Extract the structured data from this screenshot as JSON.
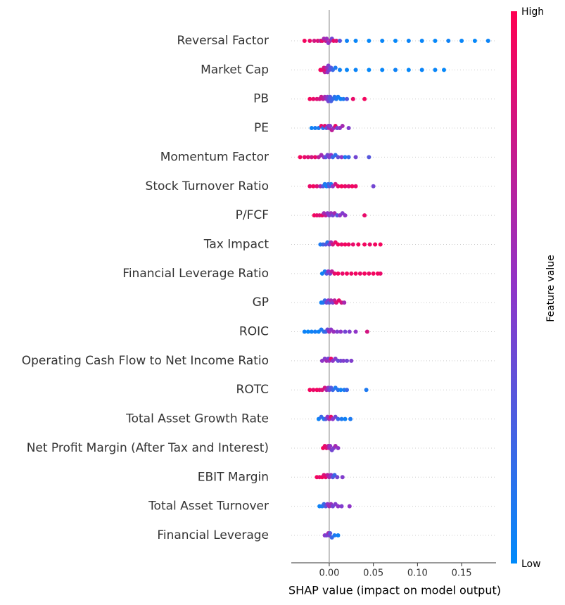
{
  "chart_data": {
    "type": "beeswarm",
    "x_label": "SHAP value (impact on model output)",
    "colorbar_label": "Feature value",
    "colorbar_high": "High",
    "colorbar_low": "Low",
    "colormap": [
      "#008bfb",
      "#8f34c8",
      "#ff0052"
    ],
    "xlim": [
      -0.043,
      0.189
    ],
    "xticks": [
      {
        "value": 0,
        "label": "0.00"
      },
      {
        "value": 0.05,
        "label": "0.05"
      },
      {
        "value": 0.1,
        "label": "0.10"
      },
      {
        "value": 0.15,
        "label": "0.15"
      }
    ],
    "series": [
      {
        "name": "Reversal Factor",
        "shap": [
          -0.028,
          -0.022,
          -0.017,
          -0.013,
          -0.01,
          -0.008,
          -0.006,
          -0.004,
          -0.003,
          -0.001,
          0.001,
          0.003,
          0.005,
          0.008,
          0.012,
          0.02,
          0.03,
          0.045,
          0.06,
          0.075,
          0.09,
          0.105,
          0.12,
          0.135,
          0.15,
          0.165,
          0.18
        ],
        "feature_value": [
          0.95,
          0.9,
          0.8,
          0.85,
          0.7,
          0.9,
          0.6,
          0.75,
          0.55,
          0.5,
          0.65,
          0.4,
          0.9,
          0.85,
          0.3,
          0.05,
          0.03,
          0.02,
          0.03,
          0.02,
          0.04,
          0.03,
          0.02,
          0.05,
          0.03,
          0.02,
          0.04
        ]
      },
      {
        "name": "Market Cap",
        "shap": [
          -0.01,
          -0.008,
          -0.006,
          -0.005,
          -0.004,
          -0.003,
          -0.002,
          -0.001,
          0,
          0.002,
          0.004,
          0.007,
          0.012,
          0.02,
          0.03,
          0.045,
          0.06,
          0.075,
          0.09,
          0.105,
          0.12,
          0.13
        ],
        "feature_value": [
          0.95,
          0.9,
          0.8,
          0.7,
          0.85,
          0.6,
          0.5,
          0.45,
          0.4,
          0.3,
          0.2,
          0.1,
          0.05,
          0.03,
          0.04,
          0.02,
          0.03,
          0.05,
          0.02,
          0.04,
          0.03,
          0.02
        ]
      },
      {
        "name": "PB",
        "shap": [
          -0.022,
          -0.018,
          -0.014,
          -0.011,
          -0.009,
          -0.007,
          -0.005,
          -0.003,
          -0.002,
          -0.001,
          0,
          0.001,
          0.002,
          0.004,
          0.006,
          0.008,
          0.01,
          0.013,
          0.016,
          0.02,
          0.027,
          0.04
        ],
        "feature_value": [
          0.95,
          0.9,
          0.85,
          0.8,
          0.75,
          0.7,
          0.6,
          0.5,
          0.45,
          0.4,
          0.35,
          0.3,
          0.25,
          0.2,
          0.15,
          0.1,
          0.08,
          0.05,
          0.1,
          0.3,
          0.9,
          0.95
        ]
      },
      {
        "name": "PE",
        "shap": [
          -0.02,
          -0.016,
          -0.012,
          -0.009,
          -0.007,
          -0.005,
          -0.003,
          -0.001,
          0,
          0.001,
          0.003,
          0.005,
          0.007,
          0.009,
          0.012,
          0.015,
          0.022
        ],
        "feature_value": [
          0.05,
          0.08,
          0.1,
          0.9,
          0.15,
          0.85,
          0.3,
          0.5,
          0.6,
          0.45,
          0.7,
          0.55,
          0.9,
          0.4,
          0.5,
          0.6,
          0.45
        ]
      },
      {
        "name": "Momentum Factor",
        "shap": [
          -0.033,
          -0.028,
          -0.024,
          -0.02,
          -0.016,
          -0.012,
          -0.009,
          -0.006,
          -0.004,
          -0.002,
          0,
          0.002,
          0.004,
          0.007,
          0.01,
          0.014,
          0.018,
          0.022,
          0.03,
          0.045
        ],
        "feature_value": [
          0.95,
          0.9,
          0.85,
          0.8,
          0.9,
          0.7,
          0.6,
          0.5,
          0.3,
          0.4,
          0.45,
          0.5,
          0.2,
          0.15,
          0.35,
          0.5,
          0.1,
          0.2,
          0.4,
          0.3
        ]
      },
      {
        "name": "Stock Turnover Ratio",
        "shap": [
          -0.022,
          -0.018,
          -0.014,
          -0.01,
          -0.007,
          -0.005,
          -0.003,
          -0.001,
          0,
          0.002,
          0.004,
          0.007,
          0.01,
          0.014,
          0.018,
          0.022,
          0.026,
          0.03,
          0.05
        ],
        "feature_value": [
          0.9,
          0.95,
          0.85,
          0.6,
          0.3,
          0.1,
          0.05,
          0.2,
          0.3,
          0.1,
          0.5,
          0.8,
          0.9,
          0.95,
          0.9,
          0.85,
          0.95,
          0.9,
          0.4
        ]
      },
      {
        "name": "P/FCF",
        "shap": [
          -0.017,
          -0.014,
          -0.011,
          -0.008,
          -0.006,
          -0.004,
          -0.002,
          0,
          0.002,
          0.004,
          0.006,
          0.009,
          0.012,
          0.015,
          0.018,
          0.04
        ],
        "feature_value": [
          0.95,
          0.9,
          0.85,
          0.9,
          0.6,
          0.7,
          0.5,
          0.45,
          0.55,
          0.4,
          0.6,
          0.3,
          0.5,
          0.45,
          0.5,
          0.9
        ]
      },
      {
        "name": "Tax Impact",
        "shap": [
          -0.01,
          -0.007,
          -0.004,
          -0.002,
          0,
          0.002,
          0.004,
          0.007,
          0.01,
          0.014,
          0.018,
          0.022,
          0.027,
          0.033,
          0.04,
          0.046,
          0.052,
          0.058
        ],
        "feature_value": [
          0.1,
          0.2,
          0.3,
          0.15,
          0.4,
          0.6,
          0.8,
          0.9,
          0.95,
          0.9,
          0.95,
          0.92,
          0.9,
          0.95,
          0.95,
          0.9,
          0.95,
          0.95
        ]
      },
      {
        "name": "Financial Leverage Ratio",
        "shap": [
          -0.008,
          -0.005,
          -0.003,
          -0.001,
          0.001,
          0.003,
          0.006,
          0.01,
          0.015,
          0.02,
          0.025,
          0.03,
          0.035,
          0.04,
          0.045,
          0.05,
          0.055,
          0.058
        ],
        "feature_value": [
          0.05,
          0.1,
          0.3,
          0.5,
          0.4,
          0.7,
          0.9,
          0.95,
          0.9,
          0.95,
          0.92,
          0.95,
          0.9,
          0.95,
          0.92,
          0.95,
          0.95,
          0.9
        ]
      },
      {
        "name": "GP",
        "shap": [
          -0.009,
          -0.007,
          -0.005,
          -0.003,
          -0.001,
          0,
          0.002,
          0.004,
          0.006,
          0.008,
          0.011,
          0.014,
          0.017
        ],
        "feature_value": [
          0.05,
          0.1,
          0.2,
          0.4,
          0.5,
          0.3,
          0.6,
          0.45,
          0.7,
          0.85,
          0.9,
          0.8,
          0.6
        ]
      },
      {
        "name": "ROIC",
        "shap": [
          -0.028,
          -0.024,
          -0.02,
          -0.016,
          -0.012,
          -0.009,
          -0.006,
          -0.004,
          -0.002,
          0,
          0.002,
          0.005,
          0.009,
          0.013,
          0.018,
          0.023,
          0.03,
          0.043
        ],
        "feature_value": [
          0.05,
          0.03,
          0.05,
          0.08,
          0.04,
          0.1,
          0.15,
          0.2,
          0.4,
          0.6,
          0.5,
          0.55,
          0.45,
          0.5,
          0.4,
          0.45,
          0.5,
          0.8
        ]
      },
      {
        "name": "Operating Cash Flow to Net Income Ratio",
        "shap": [
          -0.008,
          -0.005,
          -0.003,
          -0.001,
          0,
          0.002,
          0.004,
          0.007,
          0.01,
          0.013,
          0.016,
          0.02,
          0.025
        ],
        "feature_value": [
          0.5,
          0.45,
          0.6,
          0.4,
          0.55,
          0.9,
          0.5,
          0.45,
          0.35,
          0.4,
          0.45,
          0.4,
          0.45
        ]
      },
      {
        "name": "ROTC",
        "shap": [
          -0.022,
          -0.018,
          -0.014,
          -0.011,
          -0.008,
          -0.005,
          -0.003,
          -0.001,
          0,
          0.002,
          0.004,
          0.007,
          0.01,
          0.013,
          0.017,
          0.02,
          0.042
        ],
        "feature_value": [
          0.95,
          0.9,
          0.95,
          0.9,
          0.85,
          0.8,
          0.6,
          0.5,
          0.4,
          0.3,
          0.2,
          0.1,
          0.15,
          0.05,
          0.1,
          0.2,
          0.1
        ]
      },
      {
        "name": "Total Asset Growth Rate",
        "shap": [
          -0.012,
          -0.009,
          -0.006,
          -0.004,
          -0.002,
          0,
          0.002,
          0.004,
          0.007,
          0.01,
          0.014,
          0.018,
          0.024
        ],
        "feature_value": [
          0.05,
          0.2,
          0.1,
          0.3,
          0.5,
          0.6,
          0.9,
          0.5,
          0.4,
          0.2,
          0.1,
          0.05,
          0.1
        ]
      },
      {
        "name": "Net Profit Margin (After Tax and Interest)",
        "shap": [
          -0.007,
          -0.005,
          -0.003,
          -0.001,
          0,
          0.001,
          0.003,
          0.005,
          0.007,
          0.01
        ],
        "feature_value": [
          0.95,
          0.9,
          0.85,
          0.7,
          0.6,
          0.5,
          0.4,
          0.45,
          0.6,
          0.5
        ]
      },
      {
        "name": "EBIT Margin",
        "shap": [
          -0.014,
          -0.011,
          -0.008,
          -0.006,
          -0.004,
          -0.002,
          0,
          0.002,
          0.004,
          0.006,
          0.009,
          0.015
        ],
        "feature_value": [
          0.95,
          0.9,
          0.95,
          0.85,
          0.9,
          0.7,
          0.6,
          0.5,
          0.3,
          0.2,
          0.4,
          0.45
        ]
      },
      {
        "name": "Total Asset Turnover",
        "shap": [
          -0.011,
          -0.008,
          -0.006,
          -0.004,
          -0.002,
          0,
          0.002,
          0.004,
          0.007,
          0.01,
          0.014,
          0.023
        ],
        "feature_value": [
          0.05,
          0.1,
          0.2,
          0.3,
          0.5,
          0.6,
          0.55,
          0.4,
          0.45,
          0.5,
          0.45,
          0.5
        ]
      },
      {
        "name": "Financial Leverage",
        "shap": [
          -0.005,
          -0.003,
          -0.001,
          0,
          0.001,
          0.003,
          0.006,
          0.01
        ],
        "feature_value": [
          0.5,
          0.4,
          0.6,
          0.45,
          0.3,
          0.2,
          0.1,
          0.05
        ]
      }
    ]
  }
}
